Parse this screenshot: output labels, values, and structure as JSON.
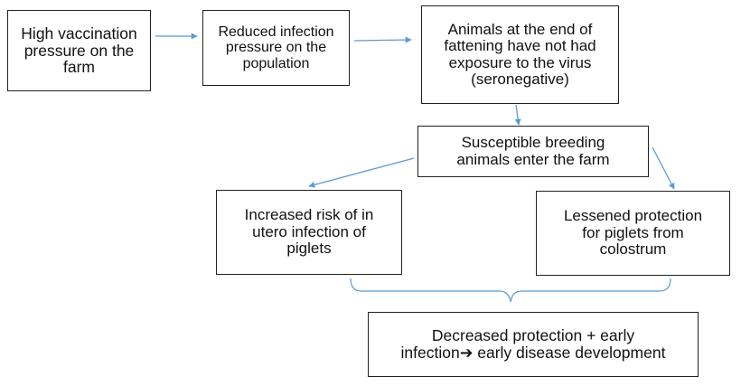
{
  "colors": {
    "arrow": "#5b9bd5",
    "border": "#222222",
    "text": "#111111"
  },
  "nodes": {
    "high_vaccination": "High vaccination\npressure on the\nfarm",
    "reduced_infection": "Reduced infection\npressure on the\npopulation",
    "seronegative": "Animals at the end of\nfattening have not had\nexposure to the virus\n(seronegative)",
    "susceptible_breeding": "Susceptible breeding\nanimals enter the farm",
    "in_utero_risk": "Increased risk of in\nutero infection of\npiglets",
    "lessened_protection": "Lessened protection\nfor piglets from\ncolostrum",
    "outcome": "Decreased protection + early\ninfection➔ early disease development"
  }
}
